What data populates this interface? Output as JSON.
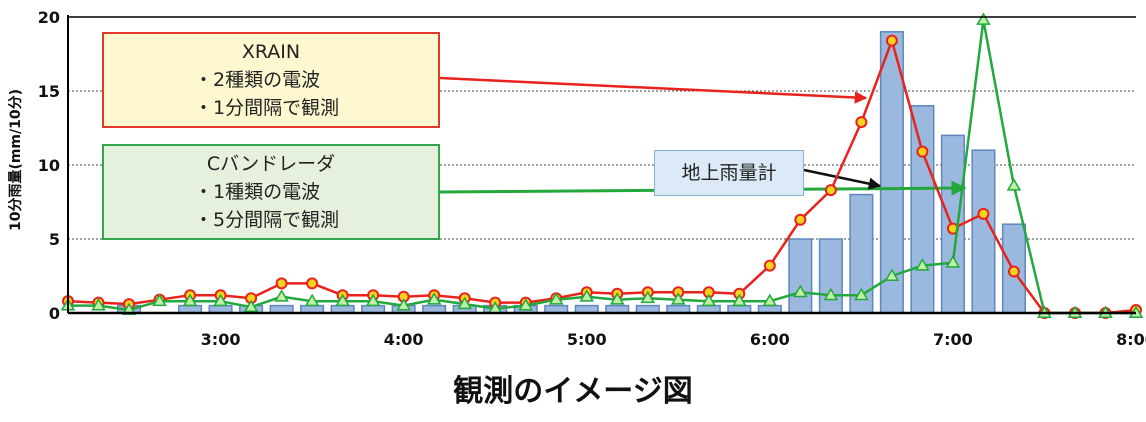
{
  "chart_data": {
    "type": "bar+line",
    "ylabel": "10分雨量(mm/10分)",
    "ylim": [
      0,
      20
    ],
    "yticks": [
      0,
      5,
      10,
      15,
      20
    ],
    "xlim": [
      "2:10",
      "8:00"
    ],
    "xticks": [
      "3:00",
      "4:00",
      "5:00",
      "6:00",
      "7:00",
      "8:00"
    ],
    "grid": "horizontal dotted",
    "bars": {
      "name": "地上雨量計",
      "color": "#9bb9de",
      "x": [
        "2:30",
        "2:50",
        "3:00",
        "3:10",
        "3:20",
        "3:30",
        "3:40",
        "3:50",
        "4:00",
        "4:10",
        "4:20",
        "4:30",
        "4:40",
        "4:50",
        "5:00",
        "5:10",
        "5:20",
        "5:30",
        "5:40",
        "5:50",
        "6:00",
        "6:10",
        "6:20",
        "6:30",
        "6:40",
        "6:50",
        "7:00",
        "7:10",
        "7:20"
      ],
      "values": [
        0.5,
        0.5,
        0.5,
        0.5,
        0.5,
        0.5,
        0.5,
        0.5,
        0.5,
        0.5,
        0.5,
        0.5,
        0.5,
        0.5,
        0.5,
        0.5,
        0.5,
        0.5,
        0.5,
        0.5,
        0.5,
        5.0,
        5.0,
        8.0,
        19.0,
        14.0,
        12.0,
        11.0,
        6.0
      ]
    },
    "series": [
      {
        "name": "XRAIN",
        "color": "#e8231d",
        "marker": "circle",
        "x": [
          "2:10",
          "2:20",
          "2:30",
          "2:40",
          "2:50",
          "3:00",
          "3:10",
          "3:20",
          "3:30",
          "3:40",
          "3:50",
          "4:00",
          "4:10",
          "4:20",
          "4:30",
          "4:40",
          "4:50",
          "5:00",
          "5:10",
          "5:20",
          "5:30",
          "5:40",
          "5:50",
          "6:00",
          "6:10",
          "6:20",
          "6:30",
          "6:40",
          "6:50",
          "7:00",
          "7:10",
          "7:20",
          "7:30",
          "7:40",
          "7:50",
          "8:00"
        ],
        "values": [
          0.8,
          0.7,
          0.6,
          0.9,
          1.2,
          1.2,
          1.0,
          2.0,
          2.0,
          1.2,
          1.2,
          1.1,
          1.2,
          1.0,
          0.7,
          0.7,
          1.0,
          1.4,
          1.3,
          1.4,
          1.4,
          1.4,
          1.3,
          3.2,
          6.3,
          8.3,
          12.9,
          18.4,
          10.9,
          5.7,
          6.7,
          2.8,
          0.0,
          0.0,
          0.0,
          0.2
        ]
      },
      {
        "name": "Cバンドレーダ",
        "color": "#22a83c",
        "marker": "triangle",
        "x": [
          "2:10",
          "2:20",
          "2:30",
          "2:40",
          "2:50",
          "3:00",
          "3:10",
          "3:20",
          "3:30",
          "3:40",
          "3:50",
          "4:00",
          "4:10",
          "4:20",
          "4:30",
          "4:40",
          "4:50",
          "5:00",
          "5:10",
          "5:20",
          "5:30",
          "5:40",
          "5:50",
          "6:00",
          "6:10",
          "6:20",
          "6:30",
          "6:40",
          "6:50",
          "7:00",
          "7:10",
          "7:20",
          "7:30",
          "7:40",
          "7:50",
          "8:00"
        ],
        "values": [
          0.5,
          0.5,
          0.2,
          0.8,
          0.8,
          0.8,
          0.4,
          1.1,
          0.8,
          0.8,
          0.8,
          0.5,
          0.9,
          0.6,
          0.3,
          0.5,
          0.9,
          1.1,
          0.9,
          1.0,
          0.9,
          0.8,
          0.8,
          0.8,
          1.4,
          1.2,
          1.2,
          2.5,
          3.2,
          3.4,
          19.8,
          8.6,
          0.0,
          0.0,
          0.0,
          0.0
        ]
      }
    ]
  },
  "annotations": {
    "xrain": {
      "title": "XRAIN",
      "line1": "・2種類の電波",
      "line2": "・1分間隔で観測",
      "border_color": "#e23a2a",
      "fill_color": "#fdf8cf"
    },
    "cband": {
      "title": "Cバンドレーダ",
      "line1": "・1種類の電波",
      "line2": "・5分間隔で観測",
      "border_color": "#2fa84a",
      "fill_color": "#e6f1dd"
    },
    "gauge": {
      "label": "地上雨量計",
      "fill_color": "#dce9f7"
    }
  },
  "caption": "観測のイメージ図"
}
